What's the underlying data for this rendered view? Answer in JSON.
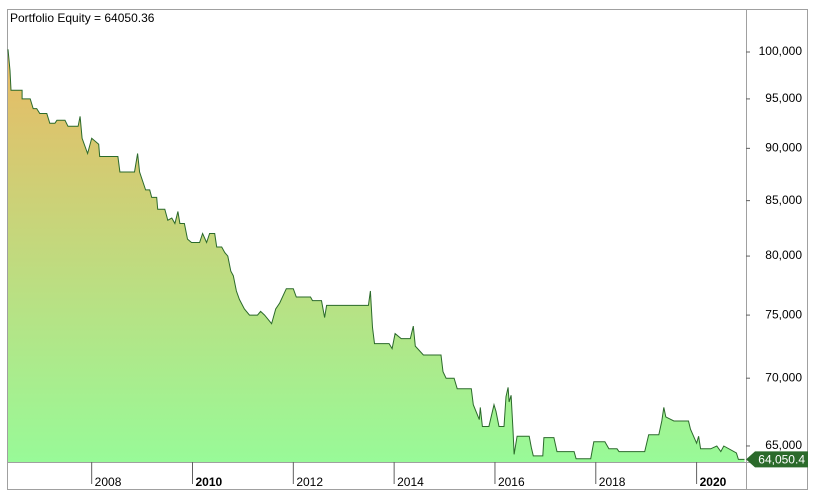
{
  "chart_data": {
    "type": "area",
    "title": "Portfolio Equity = 64050.36",
    "ylog": true,
    "ylim": [
      63870,
      104700
    ],
    "yticks": [
      {
        "value": 65000,
        "label": "65,000"
      },
      {
        "value": 70000,
        "label": "70,000"
      },
      {
        "value": 75000,
        "label": "75,000"
      },
      {
        "value": 80000,
        "label": "80,000"
      },
      {
        "value": 85000,
        "label": "85,000"
      },
      {
        "value": 90000,
        "label": "90,000"
      },
      {
        "value": 95000,
        "label": "95,000"
      },
      {
        "value": 100000,
        "label": "100,000"
      }
    ],
    "xlim": [
      2006.34,
      2020.98
    ],
    "xticks": [
      2008,
      2010,
      2012,
      2014,
      2016,
      2018,
      2020
    ],
    "last_value": {
      "value": 64050.36,
      "label": "64,050.4"
    },
    "fill_colors": [
      "#f2b35f",
      "#98fa98"
    ],
    "series": [
      {
        "color": "#2b6a2b",
        "x": [
          2006.34,
          2006.38,
          2006.4,
          2006.62,
          2006.62,
          2006.78,
          2006.84,
          2006.91,
          2006.97,
          2007.11,
          2007.17,
          2007.27,
          2007.31,
          2007.47,
          2007.53,
          2007.73,
          2007.77,
          2007.81,
          2007.92,
          2008.0,
          2008.14,
          2008.16,
          2008.52,
          2008.56,
          2008.85,
          2008.91,
          2008.95,
          2009.07,
          2009.15,
          2009.19,
          2009.29,
          2009.31,
          2009.45,
          2009.51,
          2009.59,
          2009.65,
          2009.71,
          2009.75,
          2009.84,
          2009.9,
          2009.98,
          2010.14,
          2010.2,
          2010.28,
          2010.34,
          2010.44,
          2010.48,
          2010.58,
          2010.64,
          2010.7,
          2010.76,
          2010.81,
          2010.87,
          2010.93,
          2011.03,
          2011.13,
          2011.29,
          2011.35,
          2011.43,
          2011.57,
          2011.65,
          2011.73,
          2011.86,
          2012.0,
          2012.06,
          2012.34,
          2012.38,
          2012.56,
          2012.62,
          2012.66,
          2013.49,
          2013.53,
          2013.57,
          2013.61,
          2013.9,
          2013.96,
          2014.02,
          2014.14,
          2014.32,
          2014.38,
          2014.42,
          2014.58,
          2014.93,
          2014.97,
          2015.03,
          2015.19,
          2015.25,
          2015.53,
          2015.57,
          2015.69,
          2015.71,
          2015.75,
          2015.88,
          2015.98,
          2016.02,
          2016.08,
          2016.18,
          2016.22,
          2016.26,
          2016.28,
          2016.32,
          2016.36,
          2016.38,
          2016.44,
          2016.68,
          2016.72,
          2016.76,
          2016.95,
          2016.97,
          2017.17,
          2017.23,
          2017.57,
          2017.61,
          2017.9,
          2017.96,
          2018.18,
          2018.26,
          2018.42,
          2018.46,
          2018.97,
          2019.05,
          2019.25,
          2019.31,
          2019.35,
          2019.39,
          2019.55,
          2019.84,
          2019.88,
          2020.0,
          2020.04,
          2020.08,
          2020.28,
          2020.4,
          2020.48,
          2020.54,
          2020.79,
          2020.83,
          2020.95
        ],
        "values": [
          100300,
          98000,
          95900,
          95900,
          95000,
          95000,
          94000,
          94000,
          93500,
          93500,
          92500,
          92500,
          92800,
          92800,
          92200,
          92200,
          93200,
          91000,
          89500,
          91000,
          90400,
          89200,
          89200,
          87700,
          87700,
          89500,
          87700,
          86000,
          86000,
          85300,
          85300,
          84200,
          84200,
          83200,
          83400,
          82900,
          84000,
          82900,
          82900,
          81500,
          81200,
          81200,
          82000,
          81200,
          82000,
          82000,
          80800,
          80800,
          80300,
          80000,
          78700,
          78300,
          77000,
          76300,
          75500,
          75000,
          75000,
          75300,
          75000,
          74300,
          75500,
          76000,
          77200,
          77200,
          76500,
          76500,
          76200,
          76200,
          74800,
          75800,
          75800,
          77000,
          74000,
          72700,
          72700,
          72300,
          73500,
          73100,
          73100,
          74100,
          72500,
          71800,
          71800,
          70500,
          70000,
          70000,
          69200,
          69200,
          68000,
          66900,
          67800,
          66400,
          66400,
          68000,
          67500,
          66400,
          66400,
          68600,
          69300,
          68200,
          68700,
          66000,
          64400,
          65700,
          65700,
          64900,
          64300,
          64300,
          65600,
          65600,
          64600,
          64600,
          64100,
          64100,
          65300,
          65300,
          64800,
          64800,
          64600,
          64600,
          65800,
          65800,
          66800,
          67800,
          67100,
          66800,
          66800,
          66200,
          65200,
          65700,
          64800,
          64800,
          65000,
          64600,
          65000,
          64500,
          64050,
          64050.36
        ]
      }
    ]
  }
}
